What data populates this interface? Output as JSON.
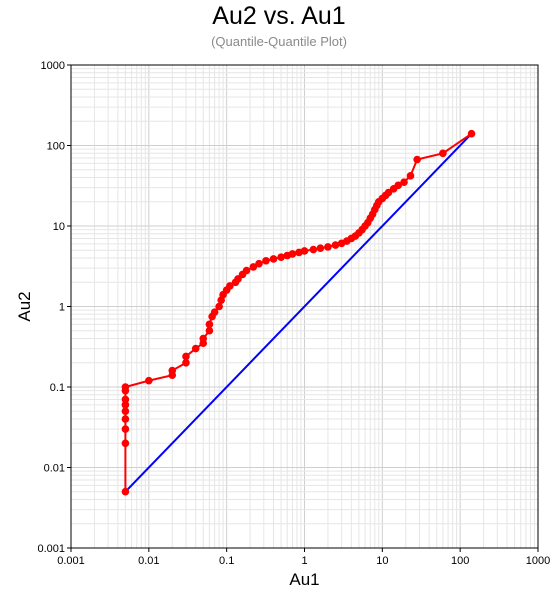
{
  "chart_data": {
    "type": "scatter",
    "title": "Au2 vs. Au1",
    "subtitle": "(Quantile-Quantile Plot)",
    "xlabel": "Au1",
    "ylabel": "Au2",
    "x_scale": "log",
    "y_scale": "log",
    "xlim": [
      0.001,
      1000
    ],
    "ylim": [
      0.001,
      1000
    ],
    "x_ticks": [
      "0.001",
      "0.01",
      "0.1",
      "1",
      "10",
      "100",
      "1000"
    ],
    "y_ticks": [
      "0.001",
      "0.01",
      "0.1",
      "1",
      "10",
      "100",
      "1000"
    ],
    "grid": true,
    "series": [
      {
        "color": "#ff0000",
        "marker": "circle",
        "connected": true,
        "points": [
          [
            0.005,
            0.005
          ],
          [
            0.005,
            0.02
          ],
          [
            0.005,
            0.03
          ],
          [
            0.005,
            0.04
          ],
          [
            0.005,
            0.05
          ],
          [
            0.005,
            0.06
          ],
          [
            0.005,
            0.07
          ],
          [
            0.005,
            0.09
          ],
          [
            0.005,
            0.1
          ],
          [
            0.01,
            0.12
          ],
          [
            0.02,
            0.14
          ],
          [
            0.02,
            0.16
          ],
          [
            0.03,
            0.2
          ],
          [
            0.03,
            0.24
          ],
          [
            0.04,
            0.3
          ],
          [
            0.05,
            0.35
          ],
          [
            0.05,
            0.4
          ],
          [
            0.06,
            0.5
          ],
          [
            0.06,
            0.6
          ],
          [
            0.065,
            0.75
          ],
          [
            0.07,
            0.85
          ],
          [
            0.08,
            1.0
          ],
          [
            0.085,
            1.2
          ],
          [
            0.09,
            1.4
          ],
          [
            0.1,
            1.6
          ],
          [
            0.11,
            1.8
          ],
          [
            0.13,
            2.0
          ],
          [
            0.14,
            2.2
          ],
          [
            0.16,
            2.5
          ],
          [
            0.18,
            2.8
          ],
          [
            0.22,
            3.1
          ],
          [
            0.26,
            3.4
          ],
          [
            0.32,
            3.7
          ],
          [
            0.4,
            3.9
          ],
          [
            0.5,
            4.1
          ],
          [
            0.6,
            4.3
          ],
          [
            0.7,
            4.5
          ],
          [
            0.85,
            4.7
          ],
          [
            1.0,
            4.9
          ],
          [
            1.3,
            5.1
          ],
          [
            1.6,
            5.3
          ],
          [
            2.0,
            5.5
          ],
          [
            2.5,
            5.8
          ],
          [
            3.0,
            6.1
          ],
          [
            3.5,
            6.5
          ],
          [
            4.0,
            7.0
          ],
          [
            4.5,
            7.5
          ],
          [
            5.0,
            8.2
          ],
          [
            5.5,
            9.0
          ],
          [
            6.0,
            10
          ],
          [
            6.5,
            11
          ],
          [
            7.0,
            12.5
          ],
          [
            7.5,
            14
          ],
          [
            8.0,
            16
          ],
          [
            8.5,
            18
          ],
          [
            9.0,
            20
          ],
          [
            10,
            22
          ],
          [
            11,
            24
          ],
          [
            12,
            26
          ],
          [
            14,
            29
          ],
          [
            16,
            32
          ],
          [
            19,
            35
          ],
          [
            23,
            42
          ],
          [
            28,
            67
          ],
          [
            60,
            80
          ],
          [
            140,
            140
          ]
        ]
      },
      {
        "color": "#0000ff",
        "marker": "none",
        "connected": true,
        "points": [
          [
            0.005,
            0.005
          ],
          [
            140,
            140
          ]
        ]
      }
    ]
  }
}
